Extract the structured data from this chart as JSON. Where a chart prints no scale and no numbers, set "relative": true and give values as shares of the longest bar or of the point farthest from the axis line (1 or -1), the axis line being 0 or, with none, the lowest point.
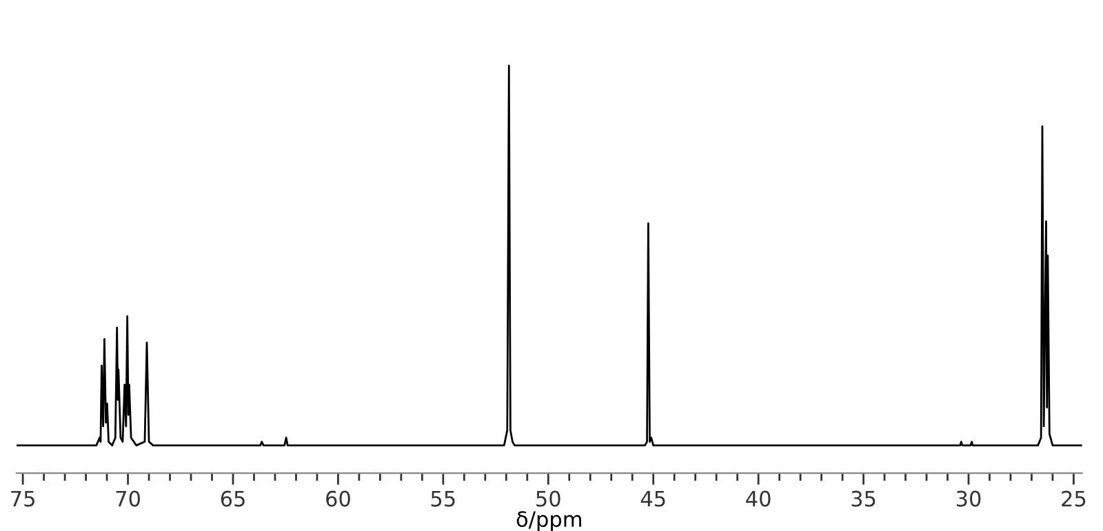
{
  "chart_data": {
    "type": "line",
    "relative": true,
    "xlabel": "δ/ppm",
    "color": "#000000",
    "tick_labels": "x",
    "grid": false,
    "legend": false,
    "marker": "none",
    "line_style": "solid",
    "xlim": [
      75.3,
      24.6
    ],
    "xticks": [
      75,
      {
        "value": 74,
        "label": null
      },
      {
        "value": 73,
        "label": null
      },
      {
        "value": 72,
        "label": null
      },
      {
        "value": 71,
        "label": null
      },
      70,
      {
        "value": 69,
        "label": null
      },
      {
        "value": 68,
        "label": null
      },
      {
        "value": 67,
        "label": null
      },
      {
        "value": 66,
        "label": null
      },
      65,
      {
        "value": 64,
        "label": null
      },
      {
        "value": 63,
        "label": null
      },
      {
        "value": 62,
        "label": null
      },
      {
        "value": 61,
        "label": null
      },
      60,
      {
        "value": 59,
        "label": null
      },
      {
        "value": 58,
        "label": null
      },
      {
        "value": 57,
        "label": null
      },
      {
        "value": 56,
        "label": null
      },
      55,
      {
        "value": 54,
        "label": null
      },
      {
        "value": 53,
        "label": null
      },
      {
        "value": 52,
        "label": null
      },
      {
        "value": 51,
        "label": null
      },
      50,
      {
        "value": 49,
        "label": null
      },
      {
        "value": 48,
        "label": null
      },
      {
        "value": 47,
        "label": null
      },
      {
        "value": 46,
        "label": null
      },
      45,
      {
        "value": 44,
        "label": null
      },
      {
        "value": 43,
        "label": null
      },
      {
        "value": 42,
        "label": null
      },
      {
        "value": 41,
        "label": null
      },
      40,
      {
        "value": 39,
        "label": null
      },
      {
        "value": 38,
        "label": null
      },
      {
        "value": 37,
        "label": null
      },
      {
        "value": 36,
        "label": null
      },
      35,
      {
        "value": 34,
        "label": null
      },
      {
        "value": 33,
        "label": null
      },
      {
        "value": 32,
        "label": null
      },
      {
        "value": 31,
        "label": null
      },
      30,
      {
        "value": 29,
        "label": null
      },
      {
        "value": 28,
        "label": null
      },
      {
        "value": 27,
        "label": null
      },
      {
        "value": 26,
        "label": null
      },
      25
    ],
    "x": [
      75.3,
      71.5,
      71.35,
      71.3,
      71.25,
      71.18,
      71.12,
      71.05,
      70.99,
      70.92,
      70.75,
      70.6,
      70.52,
      70.48,
      70.45,
      70.35,
      70.25,
      70.16,
      70.09,
      70.03,
      69.98,
      69.94,
      69.85,
      69.6,
      69.2,
      69.1,
      69.0,
      68.8,
      63.7,
      63.63,
      63.55,
      62.55,
      62.47,
      62.4,
      52.1,
      51.95,
      51.87,
      51.8,
      51.7,
      51.6,
      45.4,
      45.3,
      45.24,
      45.17,
      45.1,
      45.0,
      30.4,
      30.35,
      30.3,
      29.9,
      29.85,
      29.8,
      26.7,
      26.55,
      26.49,
      26.42,
      26.31,
      26.27,
      26.23,
      26.15,
      26.0,
      24.6
    ],
    "values": [
      0.068,
      0.068,
      0.087,
      0.077,
      0.264,
      0.115,
      0.329,
      0.124,
      0.171,
      0.077,
      0.068,
      0.087,
      0.357,
      0.18,
      0.254,
      0.087,
      0.077,
      0.217,
      0.115,
      0.385,
      0.143,
      0.217,
      0.087,
      0.068,
      0.077,
      0.32,
      0.077,
      0.068,
      0.068,
      0.077,
      0.068,
      0.068,
      0.087,
      0.068,
      0.068,
      0.105,
      1.0,
      0.105,
      0.077,
      0.068,
      0.068,
      0.077,
      0.613,
      0.077,
      0.087,
      0.068,
      0.068,
      0.077,
      0.068,
      0.068,
      0.077,
      0.068,
      0.068,
      0.087,
      0.851,
      0.115,
      0.618,
      0.161,
      0.534,
      0.096,
      0.068,
      0.068
    ]
  }
}
